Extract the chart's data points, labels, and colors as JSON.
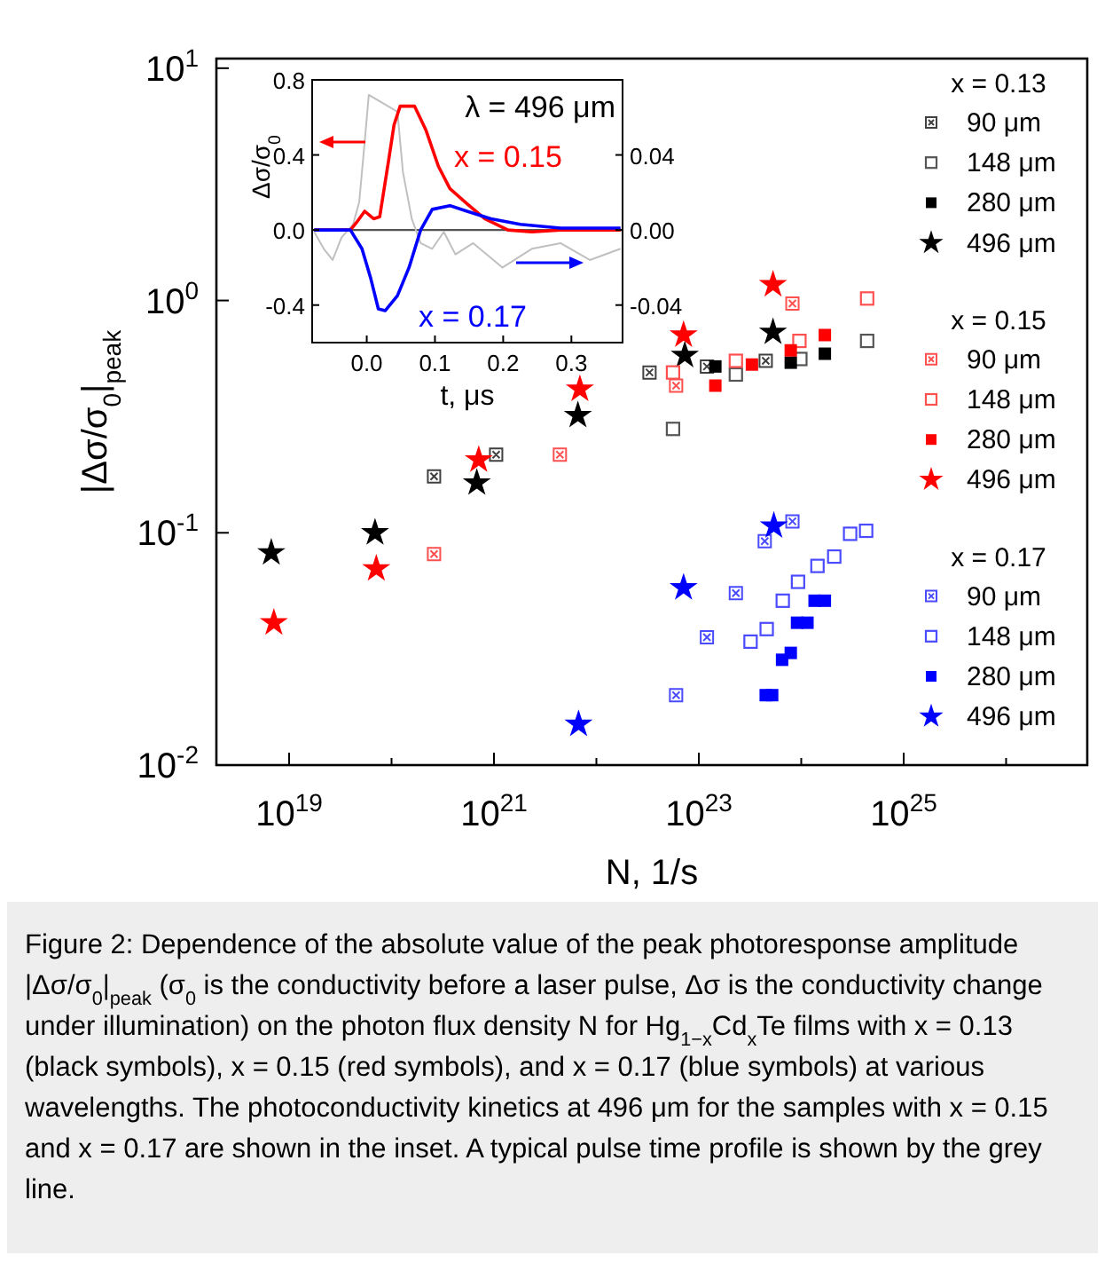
{
  "chart_data": [
    {
      "type": "scatter",
      "xlabel": "N, 1/s",
      "ylabel": "|Δσ/σ$_{0}$|$_{peak}$",
      "log": "xy",
      "legend": "right",
      "xlim": [
        1.95e+18,
        6.2e+26
      ],
      "ylim": [
        0.01,
        11
      ],
      "xticks": [
        {
          "value": 1e+19,
          "label": "10$^{19}$"
        },
        {
          "value": 1e+20,
          "label": null
        },
        {
          "value": 1e+21,
          "label": "10$^{21}$"
        },
        {
          "value": 1e+22,
          "label": null
        },
        {
          "value": 1e+23,
          "label": "10$^{23}$"
        },
        {
          "value": 1e+24,
          "label": null
        },
        {
          "value": 1e+25,
          "label": "10$^{25}$"
        },
        {
          "value": 1e+26,
          "label": null
        }
      ],
      "yticks": [
        {
          "value": 0.01,
          "label": "10$^{-2}$"
        },
        {
          "value": 0.1,
          "label": "10$^{-1}$"
        },
        {
          "value": 1,
          "label": "10$^{0}$"
        },
        {
          "value": 10,
          "label": "10$^{1}$"
        }
      ],
      "annotations": [
        "x = 0.13",
        "x = 0.15",
        "x = 0.17",
        "Figure 2: Dependence of the absolute value of the peak photoresponse amplitude |Δσ/σ$_{0}$|$_{peak}$ (σ$_{0}$ is the conductivity before a laser pulse, Δσ is the conductivity change under illumination) on the photon flux density N for Hg$_{1−x}$Cd$_{x}$Te films with x = 0.13 (black symbols), x = 0.15 (red symbols), and x = 0.17 (blue symbols) at various wavelengths. The photoconductivity kinetics at 496 μm for the samples with x = 0.15 and x = 0.17 are shown in the inset. A typical pulse time profile is shown by the grey line."
      ],
      "series": [
        {
          "name": "90 μm",
          "color": "#404040",
          "marker": "cross",
          "x": [
            2.6e+20,
            1.05e+21,
            3.3e+22,
            1.2e+23,
            4.5e+23
          ],
          "values": [
            0.175,
            0.217,
            0.49,
            0.52,
            0.55
          ]
        },
        {
          "name": "148 μm",
          "color": "#555555",
          "marker": "square-open",
          "x": [
            5.6e+22,
            2.3e+23,
            9.8e+23,
            4.4e+24
          ],
          "values": [
            0.28,
            0.48,
            0.56,
            0.67
          ]
        },
        {
          "name": "280 μm",
          "color": "#000000",
          "marker": "square",
          "x": [
            1.45e+23,
            7.9e+23,
            1.7e+24
          ],
          "values": [
            0.52,
            0.54,
            0.59
          ]
        },
        {
          "name": "496 μm",
          "color": "#000000",
          "marker": "star",
          "x": [
            6.7e+18,
            6.9e+19,
            6.8e+20,
            6.6e+21,
            7.3e+22,
            5.3e+23
          ],
          "values": [
            0.082,
            0.1,
            0.164,
            0.32,
            0.58,
            0.73
          ]
        },
        {
          "name": "90 μm",
          "color": "#ff5050",
          "marker": "cross",
          "x": [
            2.6e+20,
            4.4e+21,
            6e+22,
            8.2e+23
          ],
          "values": [
            0.081,
            0.217,
            0.43,
            0.97
          ]
        },
        {
          "name": "148 μm",
          "color": "#ff5050",
          "marker": "square-open",
          "x": [
            5.6e+22,
            2.3e+23,
            9.6e+23,
            4.4e+24
          ],
          "values": [
            0.49,
            0.55,
            0.67,
            1.02
          ]
        },
        {
          "name": "280 μm",
          "color": "#ff0000",
          "marker": "square",
          "x": [
            1.45e+23,
            3.3e+23,
            7.9e+23,
            1.7e+24
          ],
          "values": [
            0.43,
            0.53,
            0.61,
            0.71
          ]
        },
        {
          "name": "496 μm",
          "color": "#ff0000",
          "marker": "star",
          "x": [
            7.1e+18,
            7.1e+19,
            7.1e+20,
            6.9e+21,
            7.1e+22,
            5.3e+23
          ],
          "values": [
            0.041,
            0.07,
            0.206,
            0.415,
            0.71,
            1.17
          ]
        },
        {
          "name": "90 μm",
          "color": "#4a4aff",
          "marker": "cross",
          "x": [
            6e+22,
            1.2e+23,
            2.3e+23,
            4.4e+23,
            8.2e+23
          ],
          "values": [
            0.02,
            0.0355,
            0.055,
            0.092,
            0.112
          ]
        },
        {
          "name": "148 μm",
          "color": "#4a4aff",
          "marker": "square-open",
          "x": [
            3.2e+23,
            4.6e+23,
            6.6e+23,
            9.3e+23,
            1.44e+24,
            2.1e+24,
            3e+24,
            4.3e+24
          ],
          "values": [
            0.034,
            0.0385,
            0.051,
            0.0615,
            0.072,
            0.079,
            0.099,
            0.102
          ]
        },
        {
          "name": "280 μm",
          "color": "#0000ff",
          "marker": "square",
          "x": [
            4.5e+23,
            5.2e+23,
            6.5e+23,
            7.9e+23,
            9.1e+23,
            1.15e+24,
            1.35e+24,
            1.7e+24
          ],
          "values": [
            0.02,
            0.02,
            0.0284,
            0.0304,
            0.041,
            0.041,
            0.051,
            0.051
          ]
        },
        {
          "name": "496 μm",
          "color": "#0000ff",
          "marker": "star",
          "x": [
            6.7e+21,
            7.1e+22,
            5.4e+23
          ],
          "values": [
            0.015,
            0.058,
            0.107
          ]
        }
      ]
    },
    {
      "type": "line",
      "xlabel": "t, μs",
      "ylabel": "Δσ/σ$_{0}$",
      "xlim": [
        -0.08,
        0.375
      ],
      "ylim": [
        -0.6,
        0.8
      ],
      "y2lim": [
        -0.06,
        0.08
      ],
      "xticks": [
        {
          "value": 0,
          "label": "0.0"
        },
        0.1,
        0.2,
        0.3
      ],
      "yticks": [
        -0.4,
        {
          "value": 0,
          "label": "0.0"
        },
        0.4,
        0.8
      ],
      "y2ticks": [
        -0.04,
        {
          "value": 0,
          "label": "0.00"
        },
        0.04
      ],
      "ref_lines": [
        {
          "axis": "y",
          "value": 0,
          "color": "#555555"
        }
      ],
      "annotations": [
        "λ = 496 μm",
        "x = 0.15",
        "x = 0.17"
      ],
      "series": [
        {
          "color": "#ff0000",
          "x": [
            -0.077,
            -0.024,
            -0.015,
            -0.003,
            0.01,
            0.019,
            0.032,
            0.04,
            0.049,
            0.07,
            0.087,
            0.105,
            0.122,
            0.147,
            0.173,
            0.207,
            0.242,
            0.284,
            0.372
          ],
          "values": [
            0,
            0,
            0.04,
            0.1,
            0.06,
            0.07,
            0.37,
            0.56,
            0.66,
            0.66,
            0.53,
            0.34,
            0.22,
            0.14,
            0.06,
            0,
            -0.01,
            0,
            0
          ]
        },
        {
          "color": "#0000ff",
          "axis": "y2",
          "x": [
            -0.077,
            -0.024,
            -0.007,
            0.006,
            0.017,
            0.027,
            0.045,
            0.062,
            0.079,
            0.096,
            0.122,
            0.147,
            0.182,
            0.225,
            0.284,
            0.372
          ],
          "values": [
            0,
            0,
            -0.01,
            -0.026,
            -0.042,
            -0.043,
            -0.035,
            -0.02,
            0,
            0.011,
            0.013,
            0.01,
            0.006,
            0.003,
            0.001,
            0.001
          ]
        },
        {
          "color": "#c0c0c0",
          "x": [
            -0.077,
            -0.063,
            -0.05,
            -0.037,
            -0.02,
            -0.011,
            -0.003,
            0.003,
            0.045,
            0.053,
            0.066,
            0.079,
            0.096,
            0.113,
            0.13,
            0.156,
            0.199,
            0.242,
            0.284,
            0.327,
            0.372
          ],
          "values": [
            -0.01,
            -0.1,
            -0.16,
            -0.04,
            0.03,
            0.15,
            0.47,
            0.72,
            0.63,
            0.31,
            0.06,
            -0.07,
            -0.1,
            -0.01,
            -0.13,
            -0.07,
            -0.2,
            -0.1,
            -0.07,
            -0.16,
            -0.1
          ]
        }
      ]
    }
  ]
}
